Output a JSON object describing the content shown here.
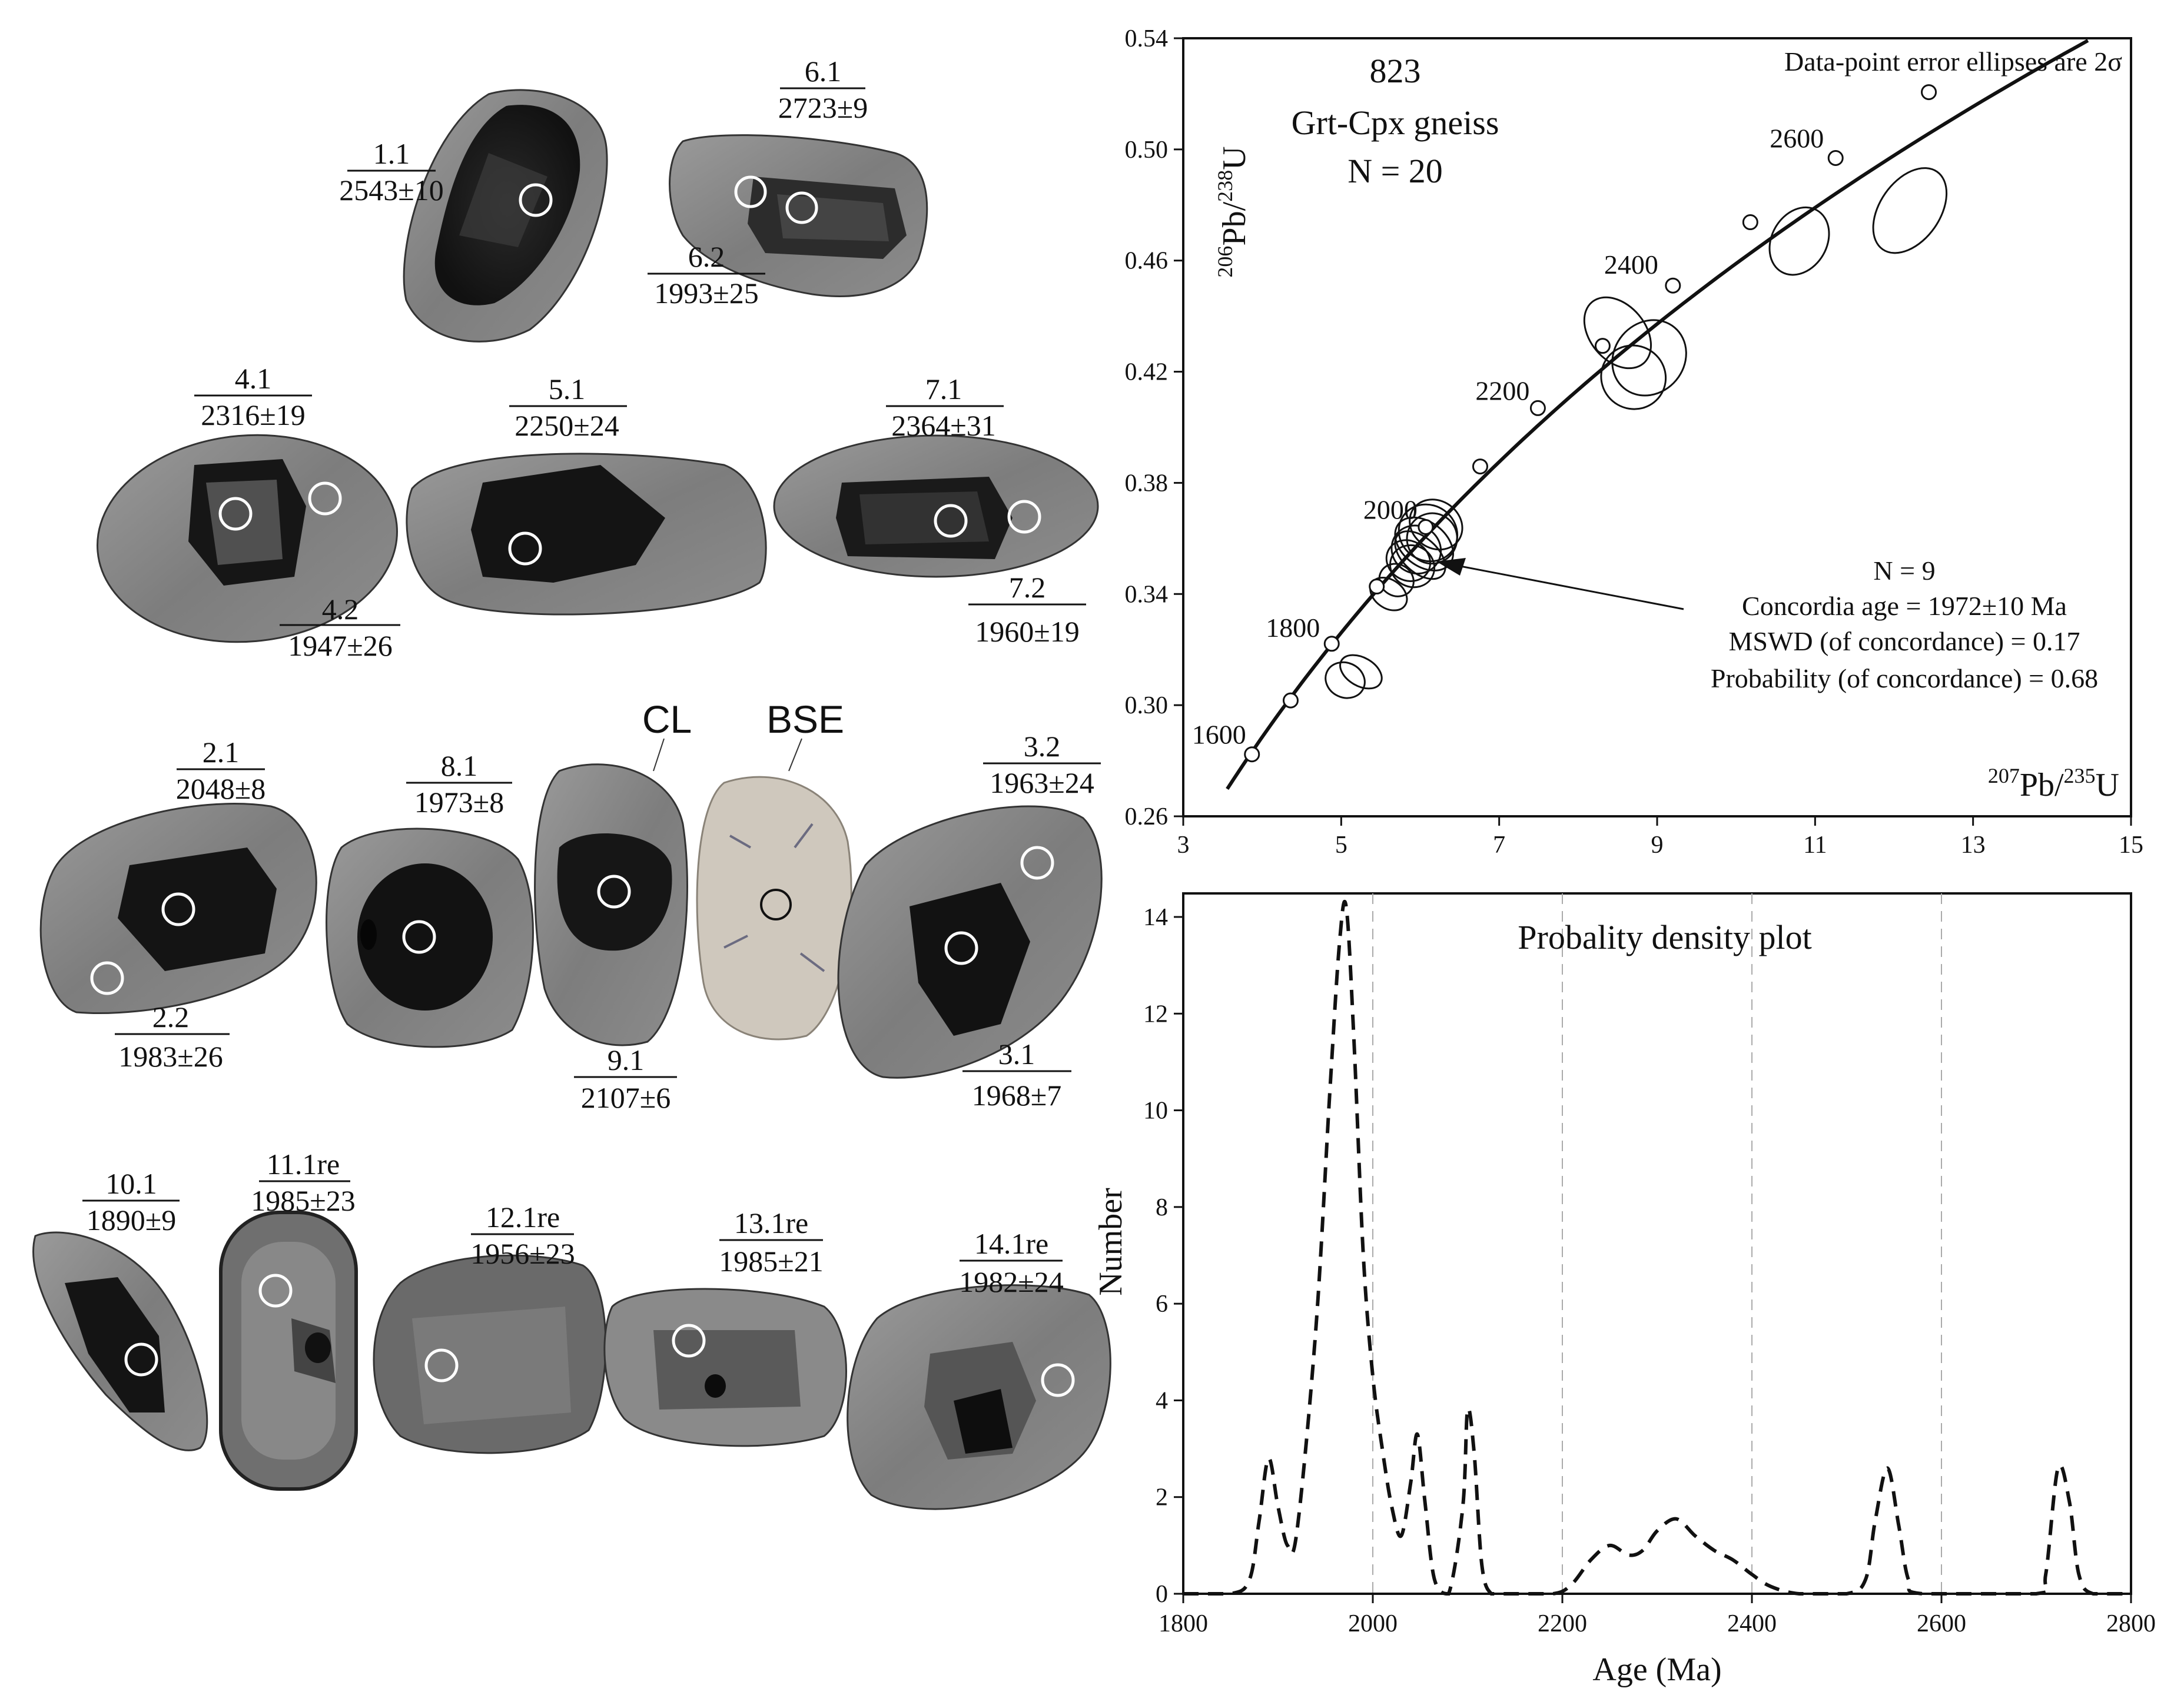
{
  "grains": [
    {
      "id": "grain-1",
      "spots": [
        {
          "spot": "1.1",
          "age": "2543±10"
        }
      ]
    },
    {
      "id": "grain-6",
      "spots": [
        {
          "spot": "6.1",
          "age": "2723±9"
        },
        {
          "spot": "6.2",
          "age": "1993±25"
        }
      ]
    },
    {
      "id": "grain-4",
      "spots": [
        {
          "spot": "4.1",
          "age": "2316±19"
        },
        {
          "spot": "4.2",
          "age": "1947±26"
        }
      ]
    },
    {
      "id": "grain-5",
      "spots": [
        {
          "spot": "5.1",
          "age": "2250±24"
        }
      ]
    },
    {
      "id": "grain-7",
      "spots": [
        {
          "spot": "7.1",
          "age": "2364±31"
        },
        {
          "spot": "7.2",
          "age": "1960±19"
        }
      ]
    },
    {
      "id": "grain-2",
      "spots": [
        {
          "spot": "2.1",
          "age": "2048±8"
        },
        {
          "spot": "2.2",
          "age": "1983±26"
        }
      ]
    },
    {
      "id": "grain-8",
      "spots": [
        {
          "spot": "8.1",
          "age": "1973±8"
        }
      ]
    },
    {
      "id": "grain-9",
      "spots": [
        {
          "spot": "9.1",
          "age": "2107±6"
        }
      ]
    },
    {
      "id": "grain-3",
      "spots": [
        {
          "spot": "3.2",
          "age": "1963±24"
        },
        {
          "spot": "3.1",
          "age": "1968±7"
        }
      ]
    },
    {
      "id": "grain-10",
      "spots": [
        {
          "spot": "10.1",
          "age": "1890±9"
        }
      ]
    },
    {
      "id": "grain-11",
      "spots": [
        {
          "spot": "11.1re",
          "age": "1985±23"
        }
      ]
    },
    {
      "id": "grain-12",
      "spots": [
        {
          "spot": "12.1re",
          "age": "1956±23"
        }
      ]
    },
    {
      "id": "grain-13",
      "spots": [
        {
          "spot": "13.1re",
          "age": "1985±21"
        }
      ]
    },
    {
      "id": "grain-14",
      "spots": [
        {
          "spot": "14.1re",
          "age": "1982±24"
        }
      ]
    }
  ],
  "image_labels": {
    "cl": "CL",
    "bse": "BSE"
  },
  "chart_data": [
    {
      "type": "scatter",
      "subtype": "concordia",
      "sample_id": "823",
      "rock_type": "Grt-Cpx gneiss",
      "n_label": "N = 20",
      "note": "Data-point error ellipses are 2σ",
      "xlabel": {
        "sup": "207",
        "base": "Pb/",
        "sup2": "235",
        "unit": "U"
      },
      "ylabel": {
        "sup": "206",
        "base": "Pb/",
        "sup2": "238",
        "unit": "U"
      },
      "xlim": [
        3,
        15
      ],
      "ylim": [
        0.26,
        0.54
      ],
      "xticks": [
        "3",
        "5",
        "7",
        "9",
        "11",
        "13",
        "15"
      ],
      "yticks": [
        "0.26",
        "0.30",
        "0.34",
        "0.38",
        "0.42",
        "0.46",
        "0.50",
        "0.54"
      ],
      "concordia_markers": [
        {
          "age": 1600,
          "x": 3.87,
          "y": 0.2823
        },
        {
          "age": 1700,
          "x": 4.36,
          "y": 0.3017
        },
        {
          "age": 1800,
          "x": 4.88,
          "y": 0.3221
        },
        {
          "age": 1900,
          "x": 5.45,
          "y": 0.3427
        },
        {
          "age": 2000,
          "x": 6.07,
          "y": 0.3641
        },
        {
          "age": 2100,
          "x": 6.76,
          "y": 0.3859
        },
        {
          "age": 2200,
          "x": 7.49,
          "y": 0.4069
        },
        {
          "age": 2300,
          "x": 8.31,
          "y": 0.4293
        },
        {
          "age": 2400,
          "x": 9.2,
          "y": 0.451
        },
        {
          "age": 2500,
          "x": 10.18,
          "y": 0.4738
        },
        {
          "age": 2600,
          "x": 11.26,
          "y": 0.4969
        },
        {
          "age": 2700,
          "x": 12.44,
          "y": 0.5206
        }
      ],
      "concordia_labels": [
        "1600",
        "1800",
        "2000",
        "2200",
        "2400",
        "2600"
      ],
      "ellipses": [
        {
          "x": 12.2,
          "y": 0.478,
          "rx": 0.6,
          "ry": 0.012,
          "angle": 55
        },
        {
          "x": 10.8,
          "y": 0.467,
          "rx": 0.45,
          "ry": 0.011,
          "angle": 60
        },
        {
          "x": 8.9,
          "y": 0.425,
          "rx": 0.5,
          "ry": 0.014,
          "angle": 50
        },
        {
          "x": 8.5,
          "y": 0.434,
          "rx": 0.35,
          "ry": 0.016,
          "angle": 40
        },
        {
          "x": 8.7,
          "y": 0.418,
          "rx": 0.4,
          "ry": 0.013,
          "angle": 60
        },
        {
          "x": 6.1,
          "y": 0.362,
          "rx": 0.35,
          "ry": 0.012,
          "angle": 55
        },
        {
          "x": 5.95,
          "y": 0.356,
          "rx": 0.3,
          "ry": 0.01,
          "angle": 58
        },
        {
          "x": 6.05,
          "y": 0.358,
          "rx": 0.28,
          "ry": 0.013,
          "angle": 52
        },
        {
          "x": 5.85,
          "y": 0.352,
          "rx": 0.25,
          "ry": 0.009,
          "angle": 60
        },
        {
          "x": 6.2,
          "y": 0.365,
          "rx": 0.3,
          "ry": 0.011,
          "angle": 55
        },
        {
          "x": 5.7,
          "y": 0.345,
          "rx": 0.2,
          "ry": 0.007,
          "angle": 60
        },
        {
          "x": 6.0,
          "y": 0.354,
          "rx": 0.22,
          "ry": 0.012,
          "angle": 48
        },
        {
          "x": 5.9,
          "y": 0.35,
          "rx": 0.26,
          "ry": 0.009,
          "angle": 62
        },
        {
          "x": 6.15,
          "y": 0.36,
          "rx": 0.32,
          "ry": 0.01,
          "angle": 57
        },
        {
          "x": 5.6,
          "y": 0.34,
          "rx": 0.18,
          "ry": 0.008,
          "angle": 55
        },
        {
          "x": 5.05,
          "y": 0.309,
          "rx": 0.22,
          "ry": 0.008,
          "angle": 65
        },
        {
          "x": 5.25,
          "y": 0.312,
          "rx": 0.18,
          "ry": 0.009,
          "angle": 60
        }
      ],
      "concordia_age_point": {
        "x": 5.95,
        "y": 0.3565
      },
      "stats": [
        "N = 9",
        "Concordia age = 1972±10 Ma",
        "MSWD (of concordance) = 0.17",
        "Probability (of concordance) = 0.68"
      ]
    },
    {
      "type": "line",
      "subtype": "probability-density",
      "title": "Probality density plot",
      "xlabel": "Age (Ma)",
      "ylabel": "Number",
      "xlim": [
        1800,
        2800
      ],
      "ylim": [
        0,
        14
      ],
      "xticks": [
        "1800",
        "2000",
        "2200",
        "2400",
        "2600",
        "2800"
      ],
      "yticks": [
        "0",
        "2",
        "4",
        "6",
        "8",
        "10",
        "12",
        "14"
      ],
      "gridlines_x": [
        2000,
        2200,
        2400,
        2600
      ],
      "x": [
        1800,
        1850,
        1870,
        1880,
        1890,
        1900,
        1910,
        1920,
        1940,
        1955,
        1965,
        1972,
        1980,
        1990,
        2000,
        2010,
        2020,
        2030,
        2040,
        2047,
        2055,
        2065,
        2080,
        2095,
        2100,
        2107,
        2115,
        2125,
        2140,
        2190,
        2210,
        2230,
        2250,
        2270,
        2285,
        2300,
        2320,
        2340,
        2360,
        2380,
        2400,
        2420,
        2450,
        2500,
        2520,
        2530,
        2543,
        2555,
        2565,
        2580,
        2700,
        2710,
        2723,
        2735,
        2745,
        2760,
        2800
      ],
      "y": [
        0,
        0,
        0.3,
        1.5,
        2.8,
        1.8,
        1.0,
        1.3,
        5.5,
        10.5,
        13.5,
        14.2,
        11.5,
        7.0,
        4.5,
        3.0,
        1.8,
        1.2,
        2.3,
        3.3,
        1.9,
        0.3,
        0,
        1.8,
        3.8,
        2.9,
        0.6,
        0,
        0,
        0,
        0.2,
        0.7,
        1.0,
        0.8,
        0.9,
        1.3,
        1.55,
        1.2,
        0.9,
        0.7,
        0.4,
        0.15,
        0,
        0,
        0.3,
        1.5,
        2.6,
        1.4,
        0.3,
        0,
        0,
        0.4,
        2.6,
        1.9,
        0.4,
        0,
        0
      ]
    }
  ]
}
